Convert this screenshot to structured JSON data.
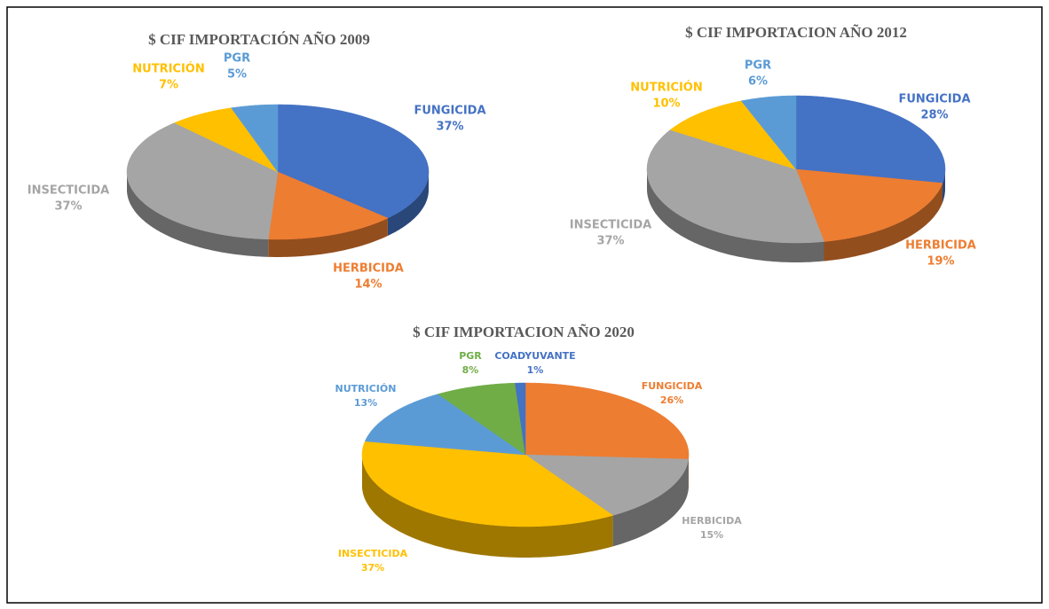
{
  "chart_data": [
    {
      "type": "pie",
      "title": "$ CIF IMPORTACIÓN  AÑO 2009",
      "categories": [
        "FUNGICIDA",
        "HERBICIDA",
        "INSECTICIDA",
        "NUTRICIÓN",
        "PGR"
      ],
      "values": [
        37,
        14,
        37,
        7,
        5
      ],
      "value_labels": [
        "37%",
        "14%",
        "37%",
        "7%",
        "5%"
      ],
      "colors": [
        "#4472c4",
        "#ed7d31",
        "#a5a5a5",
        "#ffc000",
        "#5b9bd5"
      ]
    },
    {
      "type": "pie",
      "title": "$ CIF IMPORTACION  AÑO 2012",
      "categories": [
        "FUNGICIDA",
        "HERBICIDA",
        "INSECTICIDA",
        "NUTRICIÓN",
        "PGR"
      ],
      "values": [
        28,
        19,
        37,
        10,
        6
      ],
      "value_labels": [
        "28%",
        "19%",
        "37%",
        "10%",
        "6%"
      ],
      "colors": [
        "#4472c4",
        "#ed7d31",
        "#a5a5a5",
        "#ffc000",
        "#5b9bd5"
      ]
    },
    {
      "type": "pie",
      "title": "$ CIF IMPORTACION AÑO  2020",
      "categories": [
        "FUNGICIDA",
        "HERBICIDA",
        "INSECTICIDA",
        "NUTRICIÓN",
        "PGR",
        "COADYUVANTE"
      ],
      "values": [
        26,
        15,
        37,
        13,
        8,
        1
      ],
      "value_labels": [
        "26%",
        "15%",
        "37%",
        "13%",
        "8%",
        "1%"
      ],
      "colors": [
        "#ed7d31",
        "#a5a5a5",
        "#ffc000",
        "#5b9bd5",
        "#70ad47",
        "#4472c4"
      ]
    }
  ]
}
